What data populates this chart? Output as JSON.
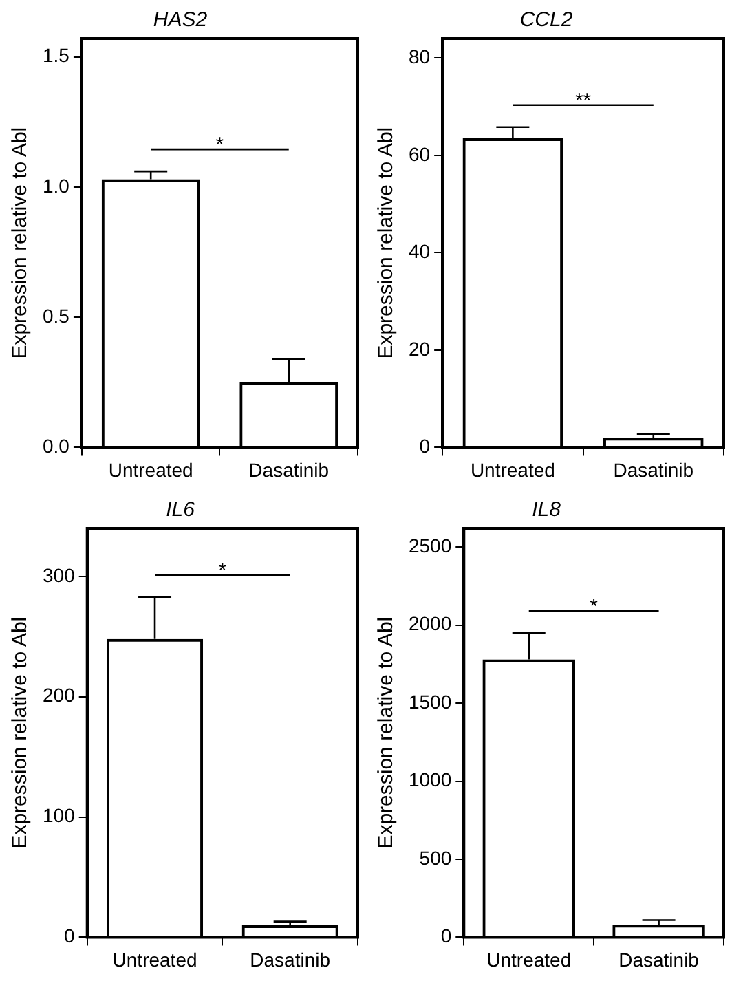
{
  "chart_data": [
    {
      "type": "bar",
      "title": "HAS2",
      "ylabel": "Expression relative to Abl",
      "categories": [
        "Untreated",
        "Dasatinib"
      ],
      "values": [
        1.03,
        0.25
      ],
      "errors": [
        0.03,
        0.09
      ],
      "color": "#000000",
      "ylim": [
        0,
        1.57
      ],
      "yticks": [
        {
          "value": 0,
          "label": "0.0"
        },
        {
          "value": 0.5,
          "label": "0.5"
        },
        {
          "value": 1,
          "label": "1.0"
        },
        {
          "value": 1.5,
          "label": "1.5"
        }
      ],
      "grid": false,
      "legend": false,
      "annotations": [
        "*"
      ]
    },
    {
      "type": "bar",
      "title": "CCL2",
      "ylabel": "Expression relative to Abl",
      "categories": [
        "Untreated",
        "Dasatinib"
      ],
      "values": [
        63.5,
        2.0
      ],
      "errors": [
        2.3,
        0.7
      ],
      "color": "#000000",
      "ylim": [
        0,
        84
      ],
      "yticks": [
        0,
        20,
        40,
        60,
        80
      ],
      "grid": false,
      "legend": false,
      "annotations": [
        "**"
      ]
    },
    {
      "type": "bar",
      "title": "IL6",
      "ylabel": "Expression relative to Abl",
      "categories": [
        "Untreated",
        "Dasatinib"
      ],
      "values": [
        248,
        10
      ],
      "errors": [
        35,
        3
      ],
      "color": "#000000",
      "ylim": [
        0,
        340
      ],
      "yticks": [
        0,
        100,
        200,
        300
      ],
      "grid": false,
      "legend": false,
      "annotations": [
        "*"
      ]
    },
    {
      "type": "bar",
      "title": "IL8",
      "ylabel": "Expression relative to Abl",
      "categories": [
        "Untreated",
        "Dasatinib"
      ],
      "values": [
        1780,
        80
      ],
      "errors": [
        170,
        30
      ],
      "color": "#000000",
      "ylim": [
        0,
        2620
      ],
      "yticks": [
        0,
        500,
        1000,
        1500,
        2000,
        2500
      ],
      "grid": false,
      "legend": false,
      "annotations": [
        "*"
      ]
    }
  ]
}
